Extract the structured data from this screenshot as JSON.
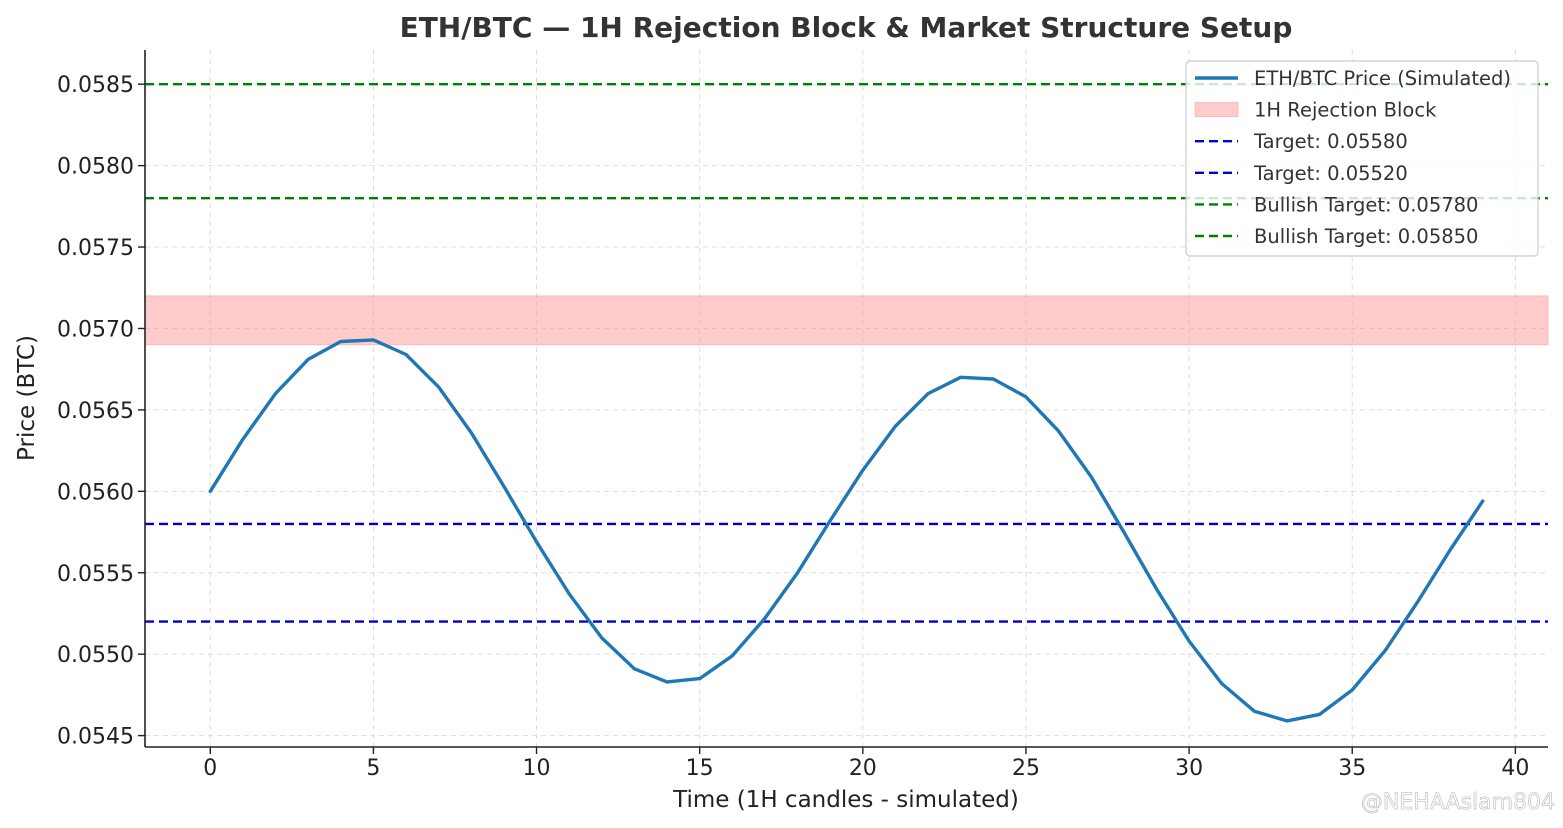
{
  "chart_data": {
    "type": "line",
    "title": "ETH/BTC — 1H Rejection Block & Market Structure Setup",
    "xlabel": "Time (1H candles - simulated)",
    "ylabel": "Price (BTC)",
    "xlim": [
      -2,
      41
    ],
    "ylim": [
      0.05443,
      0.05871
    ],
    "xticks": [
      0,
      5,
      10,
      15,
      20,
      25,
      30,
      35,
      40
    ],
    "yticks": [
      0.0545,
      0.055,
      0.0555,
      0.056,
      0.0565,
      0.057,
      0.0575,
      0.058,
      0.0585
    ],
    "ytick_labels": [
      "0.0545",
      "0.0550",
      "0.0555",
      "0.0560",
      "0.0565",
      "0.0570",
      "0.0575",
      "0.0580",
      "0.0585"
    ],
    "grid": true,
    "legend_position": "top-right",
    "series": [
      {
        "name": "ETH/BTC Price (Simulated)",
        "color": "#1f77b4",
        "x": [
          0,
          1,
          2,
          3,
          4,
          5,
          6,
          7,
          8,
          9,
          10,
          11,
          12,
          13,
          14,
          15,
          16,
          17,
          18,
          19,
          20,
          21,
          22,
          23,
          24,
          25,
          26,
          27,
          28,
          29,
          30,
          31,
          32,
          33,
          34,
          35,
          36,
          37,
          38,
          39
        ],
        "y": [
          0.056,
          0.05632,
          0.0566,
          0.05681,
          0.05692,
          0.05693,
          0.05684,
          0.05664,
          0.05636,
          0.05603,
          0.05569,
          0.05537,
          0.0551,
          0.05491,
          0.05483,
          0.05485,
          0.05499,
          0.05522,
          0.0555,
          0.05582,
          0.05613,
          0.0564,
          0.0566,
          0.0567,
          0.05669,
          0.05658,
          0.05637,
          0.05609,
          0.05575,
          0.0554,
          0.05508,
          0.05482,
          0.05465,
          0.05459,
          0.05463,
          0.05478,
          0.05502,
          0.05532,
          0.05564,
          0.05594
        ]
      }
    ],
    "band": {
      "name": "1H Rejection Block",
      "y0": 0.0569,
      "y1": 0.0572,
      "color": "#ff9999"
    },
    "hlines": [
      {
        "name": "Target: 0.05580",
        "y": 0.0558,
        "color": "#0000cc"
      },
      {
        "name": "Target: 0.05520",
        "y": 0.0552,
        "color": "#0000cc"
      },
      {
        "name": "Bullish Target: 0.05780",
        "y": 0.0578,
        "color": "#008000"
      },
      {
        "name": "Bullish Target: 0.05850",
        "y": 0.0585,
        "color": "#008000"
      }
    ]
  },
  "watermark": "@NEHAAslam804"
}
